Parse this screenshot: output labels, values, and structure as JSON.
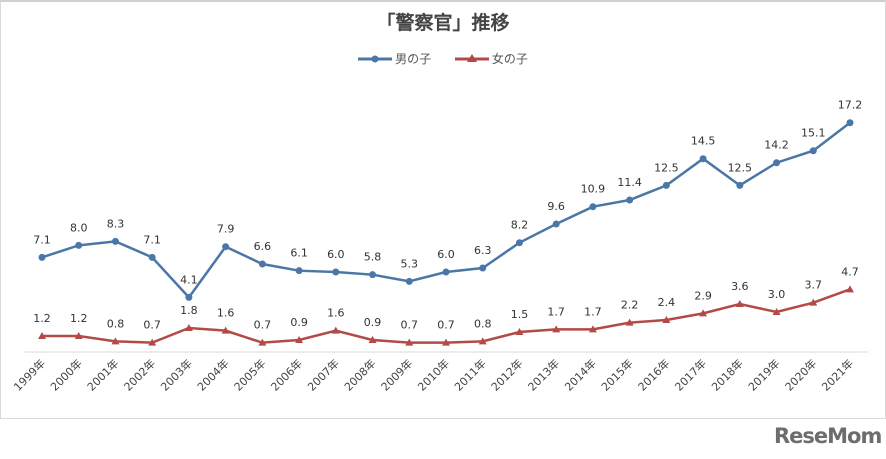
{
  "chart_data": {
    "type": "line",
    "title": "「警察官」推移",
    "categories": [
      "1999年",
      "2000年",
      "2001年",
      "2002年",
      "2003年",
      "2004年",
      "2005年",
      "2006年",
      "2007年",
      "2008年",
      "2009年",
      "2010年",
      "2011年",
      "2012年",
      "2013年",
      "2014年",
      "2015年",
      "2016年",
      "2017年",
      "2018年",
      "2019年",
      "2020年",
      "2021年"
    ],
    "series": [
      {
        "name": "男の子",
        "color": "#4a77a6",
        "marker": "circle",
        "values": [
          7.1,
          8.0,
          8.3,
          7.1,
          4.1,
          7.9,
          6.6,
          6.1,
          6.0,
          5.8,
          5.3,
          6.0,
          6.3,
          8.2,
          9.6,
          10.9,
          11.4,
          12.5,
          14.5,
          12.5,
          14.2,
          15.1,
          17.2
        ]
      },
      {
        "name": "女の子",
        "color": "#b34a47",
        "marker": "triangle",
        "values": [
          1.2,
          1.2,
          0.8,
          0.7,
          1.8,
          1.6,
          0.7,
          0.9,
          1.6,
          0.9,
          0.7,
          0.7,
          0.8,
          1.5,
          1.7,
          1.7,
          2.2,
          2.4,
          2.9,
          3.6,
          3.0,
          3.7,
          4.7
        ]
      }
    ],
    "xlabel": "",
    "ylabel": "",
    "ylim": [
      0,
      17.2
    ],
    "grid": false,
    "legend": "top-center",
    "data_labels": true
  },
  "logo": "ReseMom"
}
